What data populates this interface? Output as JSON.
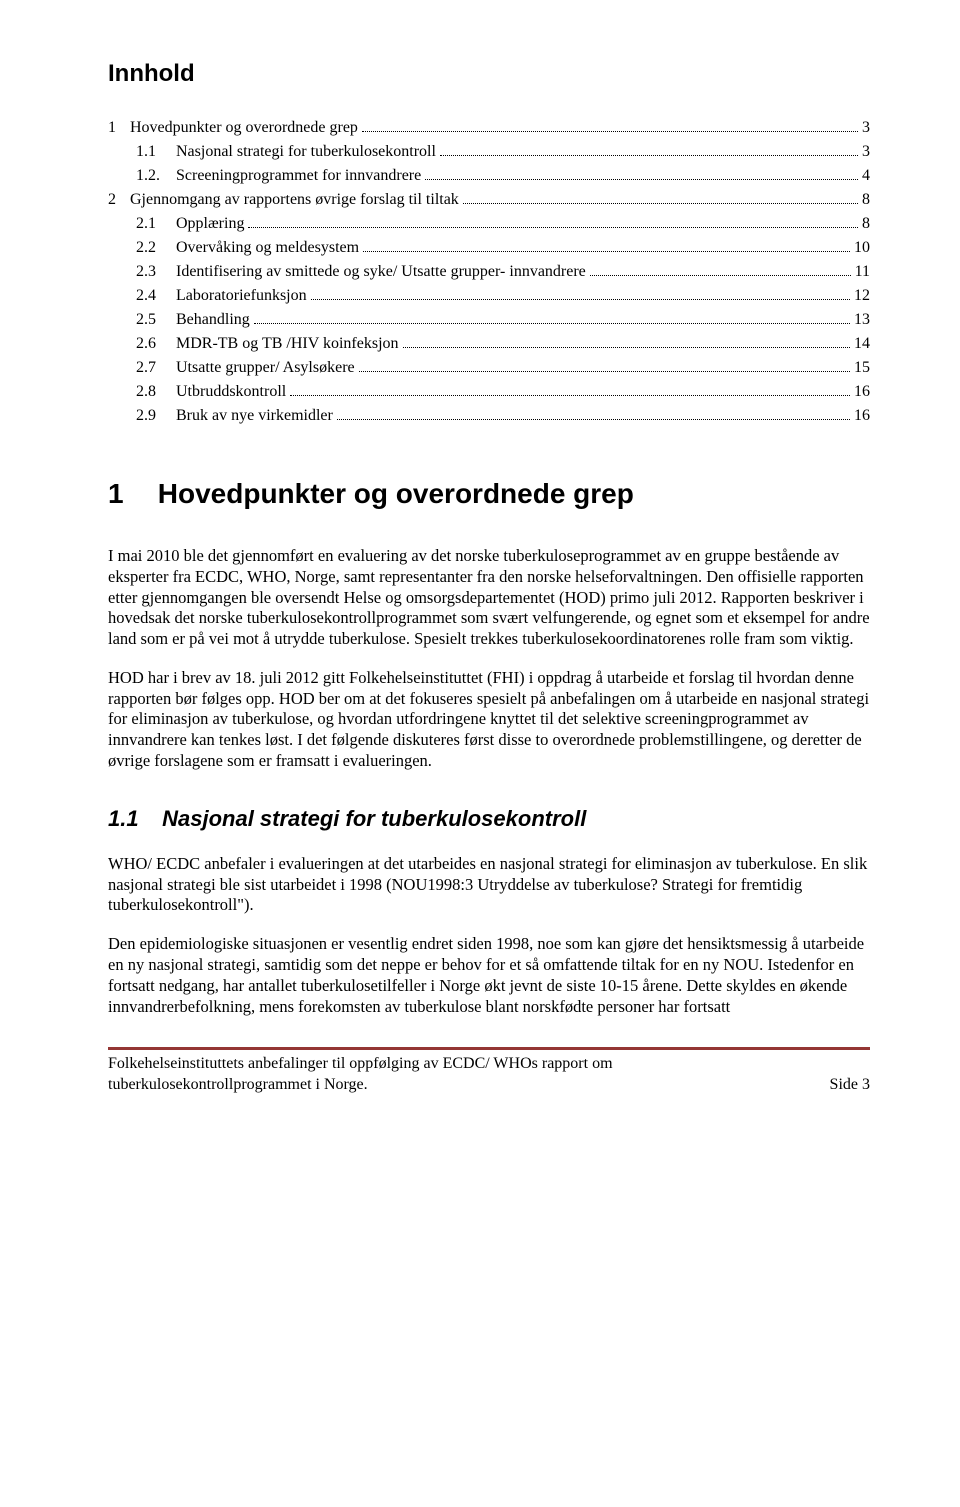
{
  "colors": {
    "text": "#000000",
    "background": "#ffffff",
    "rule": "#943634"
  },
  "typography": {
    "body_font": "Times New Roman",
    "heading_font": "Arial",
    "body_size_pt": 12,
    "h1_size_pt": 21,
    "h2_size_pt": 16,
    "toc_title_size_pt": 18
  },
  "toc_title": "Innhold",
  "toc": [
    {
      "num": "1",
      "label": "Hovedpunkter og overordnede grep",
      "page": "3",
      "level": 1
    },
    {
      "num": "1.1",
      "label": "Nasjonal strategi for tuberkulosekontroll",
      "page": "3",
      "level": 2
    },
    {
      "num": "1.2.",
      "label": "Screeningprogrammet for innvandrere",
      "page": "4",
      "level": 2
    },
    {
      "num": "2",
      "label": "Gjennomgang av rapportens øvrige forslag til tiltak",
      "page": "8",
      "level": 1
    },
    {
      "num": "2.1",
      "label": "Opplæring",
      "page": "8",
      "level": 2
    },
    {
      "num": "2.2",
      "label": "Overvåking og meldesystem",
      "page": "10",
      "level": 2
    },
    {
      "num": "2.3",
      "label": "Identifisering av smittede og syke/ Utsatte grupper- innvandrere",
      "page": "11",
      "level": 2
    },
    {
      "num": "2.4",
      "label": "Laboratoriefunksjon",
      "page": "12",
      "level": 2
    },
    {
      "num": "2.5",
      "label": "Behandling",
      "page": "13",
      "level": 2
    },
    {
      "num": "2.6",
      "label": "MDR-TB og TB /HIV koinfeksjon",
      "page": "14",
      "level": 2
    },
    {
      "num": "2.7",
      "label": "Utsatte grupper/ Asylsøkere",
      "page": "15",
      "level": 2
    },
    {
      "num": "2.8",
      "label": "Utbruddskontroll",
      "page": "16",
      "level": 2
    },
    {
      "num": "2.9",
      "label": "Bruk av nye virkemidler",
      "page": "16",
      "level": 2
    }
  ],
  "section1": {
    "num": "1",
    "title": "Hovedpunkter og overordnede grep",
    "p1": "I mai 2010 ble det gjennomført en evaluering av det norske tuberkuloseprogrammet av en gruppe bestående av eksperter fra ECDC, WHO, Norge, samt representanter fra den norske helseforvaltningen. Den offisielle rapporten etter gjennomgangen ble oversendt Helse og omsorgsdepartementet (HOD) primo juli 2012. Rapporten beskriver i hovedsak det norske tuberkulosekontrollprogrammet som svært velfungerende, og egnet som et eksempel for andre land som er på vei mot å utrydde tuberkulose. Spesielt trekkes tuberkulosekoordinatorenes rolle fram som viktig.",
    "p2": "HOD har i brev av 18. juli 2012 gitt Folkehelseinstituttet (FHI) i oppdrag å utarbeide et forslag til hvordan denne rapporten bør følges opp. HOD ber om at det fokuseres spesielt på anbefalingen om å utarbeide en nasjonal strategi for eliminasjon av tuberkulose, og hvordan utfordringene knyttet til det selektive screeningprogrammet av innvandrere kan tenkes løst. I det følgende diskuteres først disse to overordnede problemstillingene, og deretter de øvrige forslagene som er framsatt i evalueringen."
  },
  "section11": {
    "num": "1.1",
    "title": "Nasjonal strategi for tuberkulosekontroll",
    "p1": "WHO/ ECDC anbefaler i evalueringen at det utarbeides en nasjonal strategi for eliminasjon av tuberkulose. En slik nasjonal strategi ble sist utarbeidet i 1998 (NOU1998:3 Utryddelse av tuberkulose? Strategi for fremtidig tuberkulosekontroll\").",
    "p2": "Den epidemiologiske situasjonen er vesentlig endret siden 1998, noe som kan gjøre det hensiktsmessig å utarbeide en ny nasjonal strategi, samtidig som det neppe er behov for et så omfattende tiltak for en ny NOU. Istedenfor en fortsatt nedgang, har antallet tuberkulosetilfeller i Norge økt jevnt de siste 10-15 årene. Dette skyldes en økende innvandrerbefolkning, mens forekomsten av tuberkulose blant norskfødte personer har fortsatt"
  },
  "footer": {
    "left": "Folkehelseinstituttets anbefalinger til oppfølging av ECDC/ WHOs rapport om tuberkulosekontrollprogrammet i Norge.",
    "right": "Side 3"
  }
}
